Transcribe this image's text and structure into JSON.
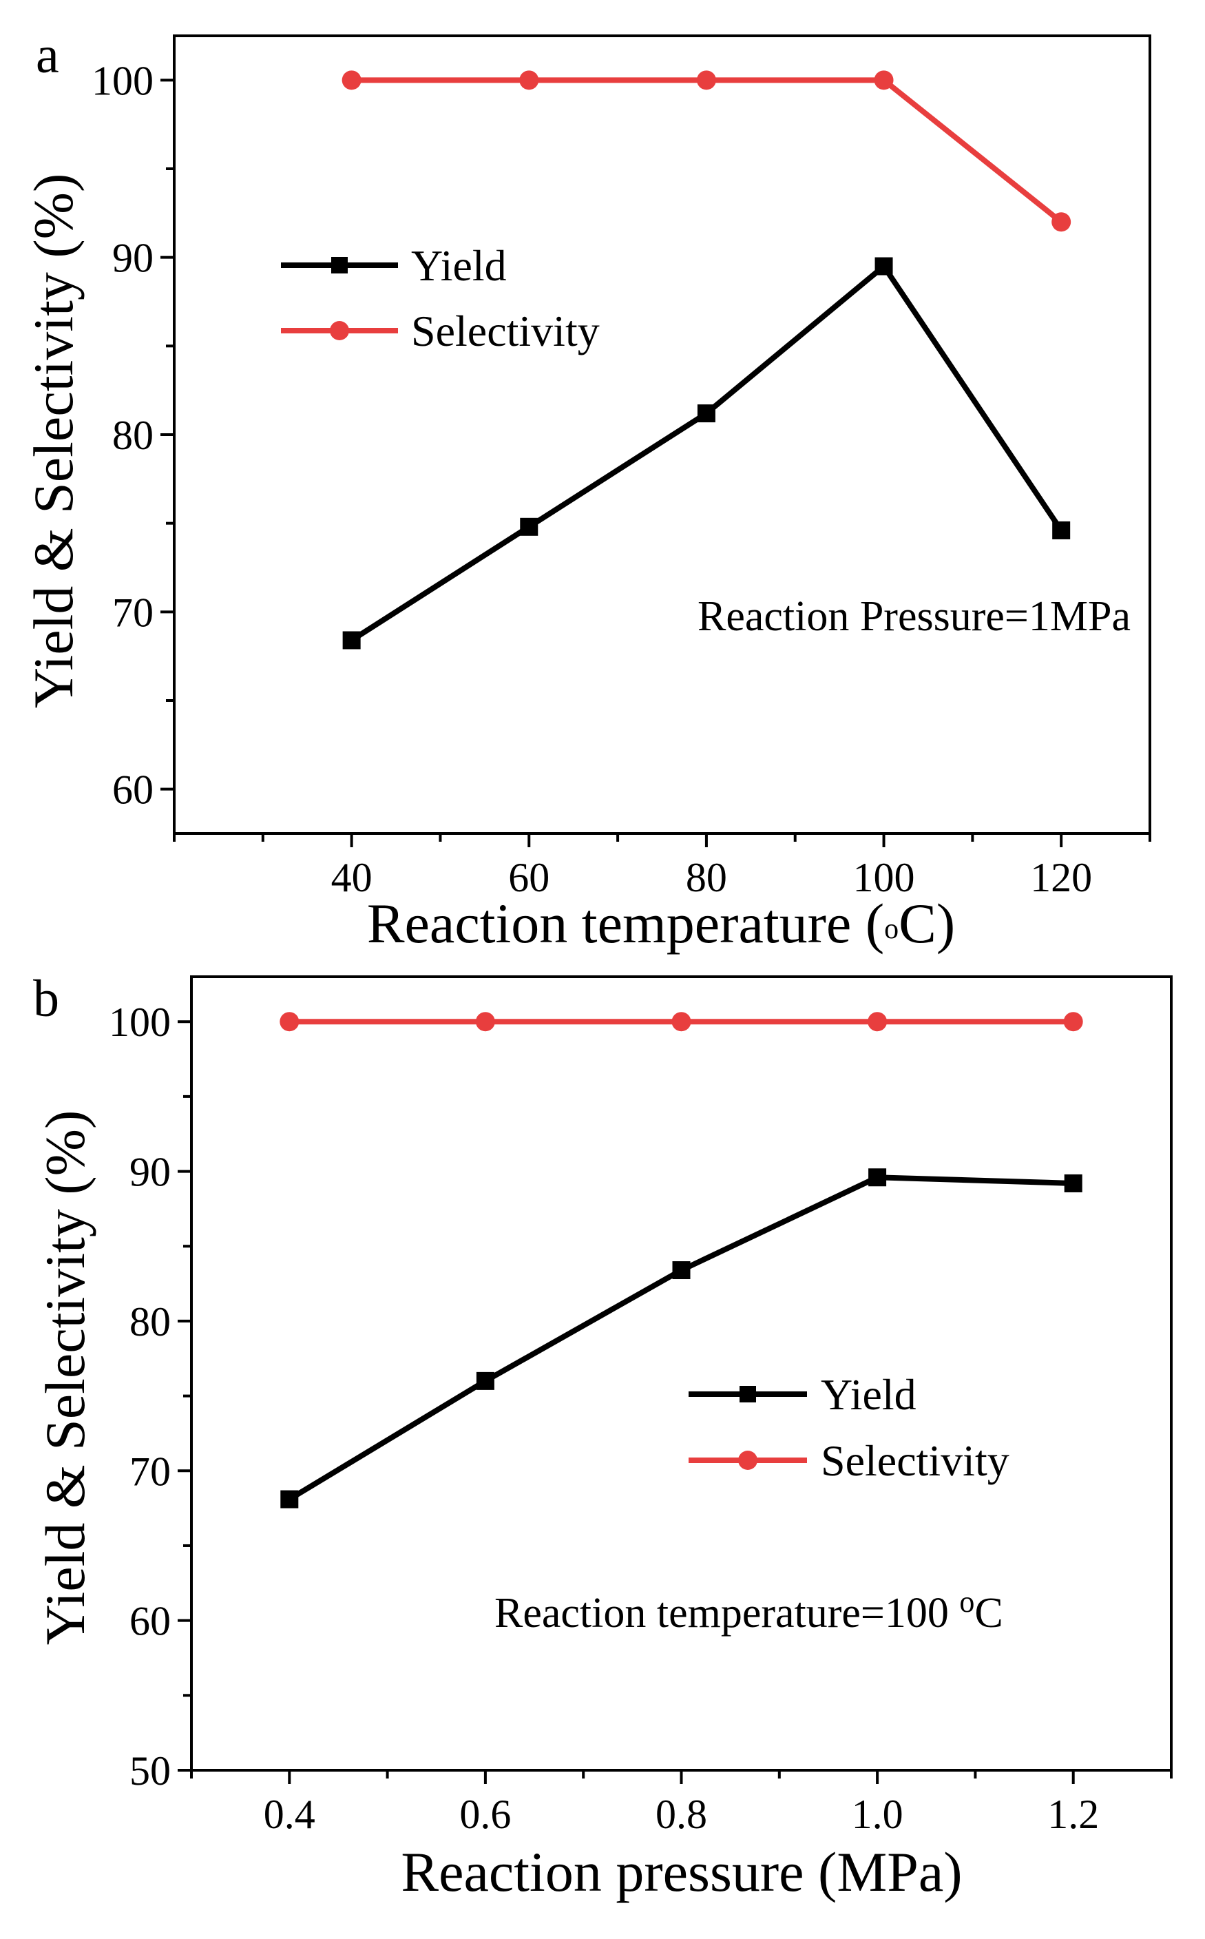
{
  "colors": {
    "yield": "#000000",
    "selectivity": "#e83e3e",
    "axis": "#000000"
  },
  "chart_data": [
    {
      "type": "line",
      "panel_label": "a",
      "xlabel_main": "Reaction temperature (",
      "xlabel_unit_sup": "o",
      "xlabel_unit": "C)",
      "ylabel": "Yield & Selectivity (%)",
      "categories": [
        40,
        60,
        80,
        100,
        120
      ],
      "x_ticks": [
        "40",
        "60",
        "80",
        "100",
        "120"
      ],
      "xlim": [
        20,
        130
      ],
      "ylim": [
        57.5,
        102.5
      ],
      "y_ticks": [
        60,
        70,
        80,
        90,
        100
      ],
      "annotation": "Reaction Pressure=1MPa",
      "legend": [
        "Yield",
        "Selectivity"
      ],
      "legend_position": "upper-left",
      "series": [
        {
          "name": "Yield",
          "marker": "square",
          "values": [
            68.4,
            74.8,
            81.2,
            89.5,
            74.6
          ]
        },
        {
          "name": "Selectivity",
          "marker": "circle",
          "values": [
            100,
            100,
            100,
            100,
            92
          ]
        }
      ]
    },
    {
      "type": "line",
      "panel_label": "b",
      "xlabel": "Reaction pressure (MPa)",
      "ylabel": "Yield & Selectivity (%)",
      "categories": [
        0.4,
        0.6,
        0.8,
        1.0,
        1.2
      ],
      "x_ticks": [
        "0.4",
        "0.6",
        "0.8",
        "1.0",
        "1.2"
      ],
      "xlim": [
        0.3,
        1.3
      ],
      "ylim": [
        50,
        103
      ],
      "y_ticks": [
        50,
        60,
        70,
        80,
        90,
        100
      ],
      "annotation_main": "Reaction temperature=100 ",
      "annotation_sup": "o",
      "annotation_unit": "C",
      "legend": [
        "Yield",
        "Selectivity"
      ],
      "legend_position": "center-right",
      "series": [
        {
          "name": "Yield",
          "marker": "square",
          "values": [
            68.1,
            76.0,
            83.4,
            89.6,
            89.2
          ]
        },
        {
          "name": "Selectivity",
          "marker": "circle",
          "values": [
            100,
            100,
            100,
            100,
            100
          ]
        }
      ]
    }
  ]
}
